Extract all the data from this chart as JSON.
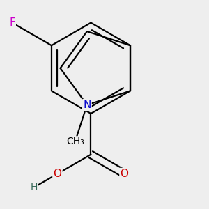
{
  "background_color": "#eeeeee",
  "bond_color": "#000000",
  "bond_width": 1.6,
  "atom_colors": {
    "F": "#cc00cc",
    "N": "#0000cc",
    "O": "#cc0000",
    "C": "#000000",
    "H": "#336655"
  },
  "font_size": 11,
  "figsize": [
    3.0,
    3.0
  ],
  "dpi": 100,
  "xlim": [
    -1.8,
    2.4
  ],
  "ylim": [
    -2.6,
    2.0
  ]
}
